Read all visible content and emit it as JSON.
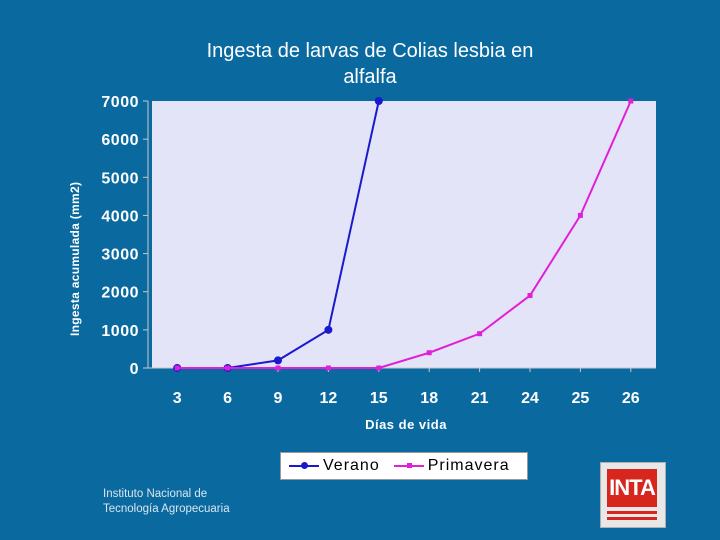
{
  "chart_data": {
    "type": "line",
    "title_line1": "Ingesta de larvas de Colias lesbia en",
    "title_line2": "alfalfa",
    "xlabel": "Días de vida",
    "ylabel": "Ingesta acumulada (mm2)",
    "categories": [
      "3",
      "6",
      "9",
      "12",
      "15",
      "18",
      "21",
      "24",
      "25",
      "26"
    ],
    "yticks": [
      "0",
      "1000",
      "2000",
      "3000",
      "4000",
      "5000",
      "6000",
      "7000"
    ],
    "ylim": [
      0,
      7000
    ],
    "grid": false,
    "legend_position": "bottom",
    "series": [
      {
        "name": "Verano",
        "color": "#1a1acc",
        "marker": "circle",
        "values": [
          0,
          0,
          200,
          1000,
          7000,
          null,
          null,
          null,
          null,
          null
        ]
      },
      {
        "name": "Primavera",
        "color": "#e020d8",
        "marker": "square",
        "values": [
          0,
          0,
          0,
          0,
          0,
          400,
          900,
          1900,
          4000,
          7000
        ]
      }
    ]
  },
  "footer": {
    "org_line1": "Instituto Nacional de",
    "org_line2": "Tecnología Agropecuaria",
    "logo_text": "INTA"
  },
  "colors": {
    "background": "#0a6aa0",
    "plot_area": "#e4e4f8",
    "axis_text": "#ffffff"
  }
}
